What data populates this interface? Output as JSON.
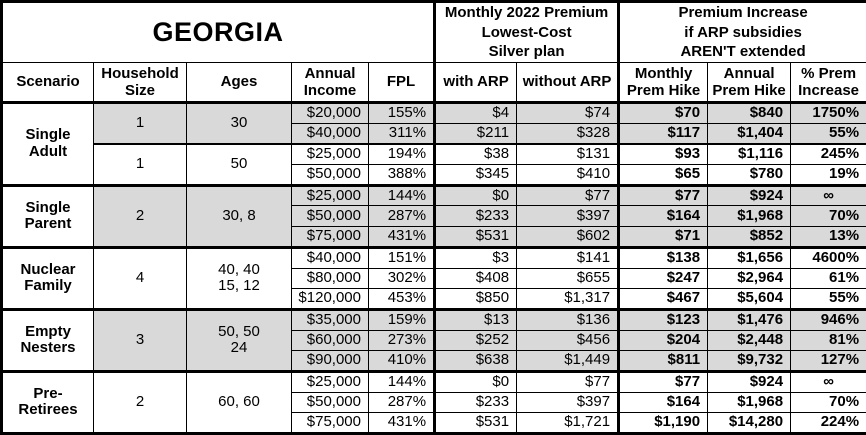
{
  "title": "GEORGIA",
  "header": {
    "premium_group": "Monthly 2022 Premium\nLowest-Cost\nSilver plan",
    "increase_group": "Premium Increase\nif ARP subsidies\nAREN'T extended",
    "columns": {
      "scenario": "Scenario",
      "household": "Household\nSize",
      "ages": "Ages",
      "income": "Annual\nIncome",
      "fpl": "FPL",
      "with_arp": "with ARP",
      "without_arp": "without ARP",
      "monthly_hike": "Monthly\nPrem Hike",
      "annual_hike": "Annual\nPrem Hike",
      "pct_increase": "% Prem\nIncrease"
    }
  },
  "colors": {
    "shaded_row": "#d9d9d9",
    "border": "#000000",
    "background": "#ffffff"
  },
  "chart_data": {
    "type": "table",
    "title": "GEORGIA",
    "columns": [
      "Scenario",
      "Household Size",
      "Ages",
      "Annual Income",
      "FPL",
      "with ARP",
      "without ARP",
      "Monthly Prem Hike",
      "Annual Prem Hike",
      "% Prem Increase"
    ],
    "sections": [
      {
        "scenario": "Single\nAdult",
        "subgroups": [
          {
            "household": "1",
            "ages": "30",
            "shaded": true,
            "rows": [
              [
                "$20,000",
                "155%",
                "$4",
                "$74",
                "$70",
                "$840",
                "1750%"
              ],
              [
                "$40,000",
                "311%",
                "$211",
                "$328",
                "$117",
                "$1,404",
                "55%"
              ]
            ]
          },
          {
            "household": "1",
            "ages": "50",
            "shaded": false,
            "rows": [
              [
                "$25,000",
                "194%",
                "$38",
                "$131",
                "$93",
                "$1,116",
                "245%"
              ],
              [
                "$50,000",
                "388%",
                "$345",
                "$410",
                "$65",
                "$780",
                "19%"
              ]
            ]
          }
        ]
      },
      {
        "scenario": "Single\nParent",
        "subgroups": [
          {
            "household": "2",
            "ages": "30, 8",
            "shaded": true,
            "rows": [
              [
                "$25,000",
                "144%",
                "$0",
                "$77",
                "$77",
                "$924",
                "∞"
              ],
              [
                "$50,000",
                "287%",
                "$233",
                "$397",
                "$164",
                "$1,968",
                "70%"
              ],
              [
                "$75,000",
                "431%",
                "$531",
                "$602",
                "$71",
                "$852",
                "13%"
              ]
            ]
          }
        ]
      },
      {
        "scenario": "Nuclear\nFamily",
        "subgroups": [
          {
            "household": "4",
            "ages": "40, 40\n15, 12",
            "shaded": false,
            "rows": [
              [
                "$40,000",
                "151%",
                "$3",
                "$141",
                "$138",
                "$1,656",
                "4600%"
              ],
              [
                "$80,000",
                "302%",
                "$408",
                "$655",
                "$247",
                "$2,964",
                "61%"
              ],
              [
                "$120,000",
                "453%",
                "$850",
                "$1,317",
                "$467",
                "$5,604",
                "55%"
              ]
            ]
          }
        ]
      },
      {
        "scenario": "Empty\nNesters",
        "subgroups": [
          {
            "household": "3",
            "ages": "50, 50\n24",
            "shaded": true,
            "rows": [
              [
                "$35,000",
                "159%",
                "$13",
                "$136",
                "$123",
                "$1,476",
                "946%"
              ],
              [
                "$60,000",
                "273%",
                "$252",
                "$456",
                "$204",
                "$2,448",
                "81%"
              ],
              [
                "$90,000",
                "410%",
                "$638",
                "$1,449",
                "$811",
                "$9,732",
                "127%"
              ]
            ]
          }
        ]
      },
      {
        "scenario": "Pre-\nRetirees",
        "subgroups": [
          {
            "household": "2",
            "ages": "60, 60",
            "shaded": false,
            "rows": [
              [
                "$25,000",
                "144%",
                "$0",
                "$77",
                "$77",
                "$924",
                "∞"
              ],
              [
                "$50,000",
                "287%",
                "$233",
                "$397",
                "$164",
                "$1,968",
                "70%"
              ],
              [
                "$75,000",
                "431%",
                "$531",
                "$1,721",
                "$1,190",
                "$14,280",
                "224%"
              ]
            ]
          }
        ]
      }
    ]
  }
}
